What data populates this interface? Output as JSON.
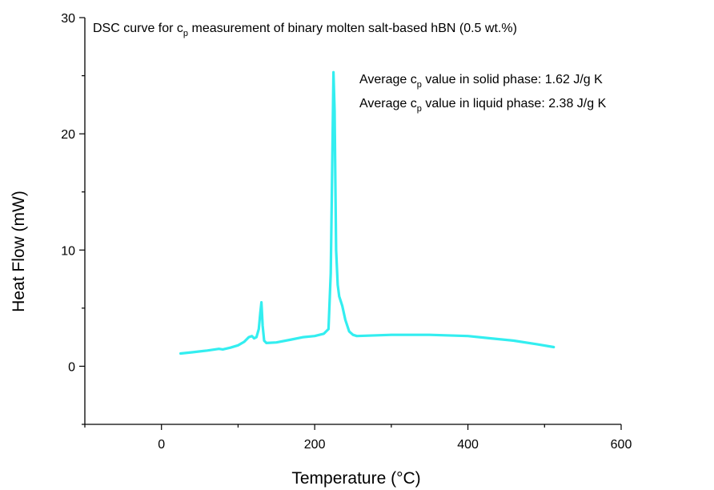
{
  "chart_data": {
    "type": "line",
    "title": {
      "prefix": "DSC curve for c",
      "sub": "p",
      "suffix": " measurement of binary molten salt-based hBN (0.5 wt.%)"
    },
    "xlabel": "Temperature (°C)",
    "ylabel": "Heat Flow (mW)",
    "xlim": [
      -100,
      600
    ],
    "ylim": [
      -5,
      30
    ],
    "xticks": [
      0,
      200,
      400,
      600
    ],
    "yticks": [
      0,
      10,
      20,
      30
    ],
    "grid": false,
    "line_color": "#33eef0",
    "annotations": [
      {
        "prefix": "Average c",
        "sub": "p",
        "suffix": " value in solid phase: 1.62 J/g K"
      },
      {
        "prefix": "Average c",
        "sub": "p",
        "suffix": " value in liquid phase: 2.38 J/g K"
      }
    ],
    "series": [
      {
        "x": [
          25,
          40,
          60,
          75,
          80,
          90,
          100,
          108,
          114,
          118,
          121,
          124,
          127,
          129,
          130.5,
          132,
          134,
          137,
          150,
          170,
          185,
          200,
          212,
          218,
          221,
          223,
          224.5,
          226,
          228,
          230,
          232,
          236,
          240,
          245,
          250,
          255,
          300,
          350,
          400,
          430,
          460,
          490,
          512
        ],
        "y": [
          1.1,
          1.2,
          1.35,
          1.5,
          1.45,
          1.6,
          1.8,
          2.1,
          2.5,
          2.6,
          2.4,
          2.5,
          3.2,
          4.6,
          5.5,
          3.5,
          2.2,
          2.0,
          2.05,
          2.3,
          2.5,
          2.6,
          2.8,
          3.2,
          8.0,
          18.0,
          25.3,
          22.0,
          10.0,
          7.0,
          6.0,
          5.2,
          4.0,
          3.0,
          2.7,
          2.6,
          2.7,
          2.7,
          2.6,
          2.4,
          2.2,
          1.9,
          1.65
        ]
      }
    ]
  }
}
